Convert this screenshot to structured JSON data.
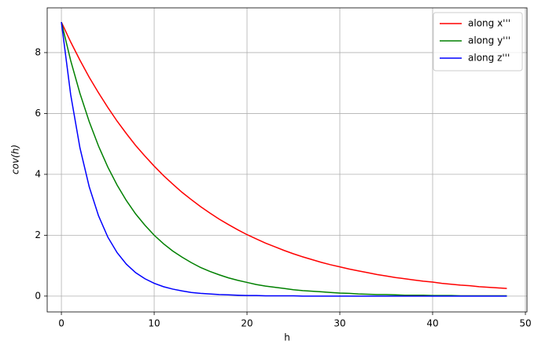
{
  "chart_data": {
    "type": "line",
    "xlabel": "h",
    "ylabel": "cov(h)",
    "x": [
      0,
      1,
      2,
      3,
      4,
      5,
      6,
      7,
      8,
      9,
      10,
      11,
      12,
      13,
      14,
      15,
      16,
      17,
      18,
      19,
      20,
      21,
      22,
      23,
      24,
      25,
      26,
      27,
      28,
      29,
      30,
      31,
      32,
      33,
      34,
      35,
      36,
      37,
      38,
      39,
      40,
      41,
      42,
      43,
      44,
      45,
      46,
      47,
      48
    ],
    "series": [
      {
        "name": "along x'''",
        "color": "#ff0000",
        "values": [
          9,
          8.35,
          7.75,
          7.19,
          6.68,
          6.2,
          5.75,
          5.34,
          4.95,
          4.6,
          4.27,
          3.96,
          3.68,
          3.41,
          3.17,
          2.94,
          2.73,
          2.53,
          2.35,
          2.18,
          2.02,
          1.88,
          1.74,
          1.62,
          1.5,
          1.39,
          1.29,
          1.2,
          1.11,
          1.03,
          0.96,
          0.89,
          0.83,
          0.77,
          0.71,
          0.66,
          0.61,
          0.57,
          0.53,
          0.49,
          0.46,
          0.42,
          0.39,
          0.36,
          0.34,
          0.31,
          0.29,
          0.27,
          0.25
        ]
      },
      {
        "name": "along y'''",
        "color": "#008000",
        "values": [
          9,
          7.74,
          6.66,
          5.73,
          4.93,
          4.24,
          3.65,
          3.14,
          2.7,
          2.33,
          2,
          1.72,
          1.48,
          1.28,
          1.1,
          0.94,
          0.81,
          0.7,
          0.6,
          0.52,
          0.45,
          0.38,
          0.33,
          0.29,
          0.25,
          0.21,
          0.18,
          0.16,
          0.14,
          0.12,
          0.1,
          0.09,
          0.07,
          0.06,
          0.05,
          0.05,
          0.04,
          0.03,
          0.03,
          0.03,
          0.02,
          0.02,
          0.02,
          0.01,
          0.01,
          0.01,
          0.01,
          0.01,
          0.01
        ]
      },
      {
        "name": "along z'''",
        "color": "#0000ff",
        "values": [
          9,
          6.62,
          4.87,
          3.59,
          2.64,
          1.94,
          1.43,
          1.05,
          0.77,
          0.57,
          0.42,
          0.31,
          0.23,
          0.17,
          0.12,
          0.09,
          0.07,
          0.05,
          0.04,
          0.03,
          0.02,
          0.02,
          0.01,
          0.01,
          0.01,
          0.01,
          0,
          0,
          0,
          0,
          0,
          0,
          0,
          0,
          0,
          0,
          0,
          0,
          0,
          0,
          0,
          0,
          0,
          0,
          0,
          0,
          0,
          0,
          0
        ]
      }
    ],
    "xlim": [
      -1.53,
      50.17
    ],
    "ylim": [
      -0.52,
      9.47
    ],
    "xticks": [
      0,
      10,
      20,
      30,
      40,
      50
    ],
    "yticks": [
      0,
      2,
      4,
      6,
      8
    ],
    "grid": true,
    "legend": "upper right"
  }
}
